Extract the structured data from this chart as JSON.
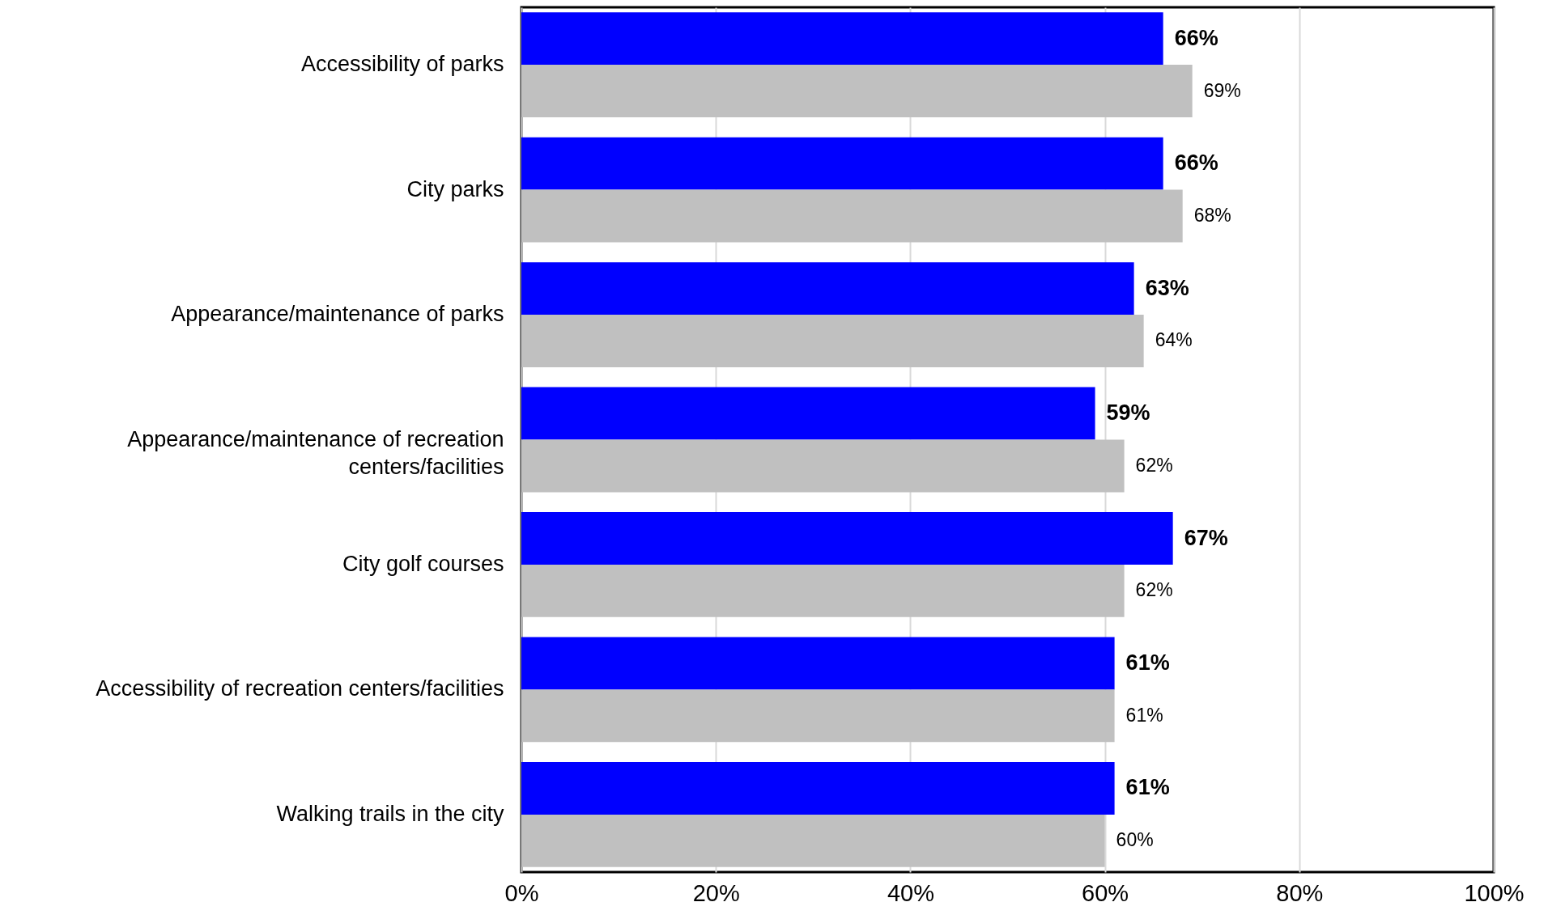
{
  "chart_data": {
    "type": "bar",
    "orientation": "horizontal",
    "categories": [
      "Accessibility of parks",
      "City parks",
      "Appearance/maintenance of parks",
      "Appearance/maintenance of recreation centers/facilities",
      "City golf courses",
      "Accessibility of recreation centers/facilities",
      "Walking trails in the city"
    ],
    "series": [
      {
        "color": "#0000ff",
        "values": [
          66,
          66,
          63,
          59,
          67,
          61,
          61
        ],
        "value_labels": [
          "66%",
          "66%",
          "63%",
          "59%",
          "67%",
          "61%",
          "61%"
        ]
      },
      {
        "color": "#c0c0c0",
        "values": [
          69,
          68,
          64,
          62,
          62,
          61,
          60
        ],
        "value_labels": [
          "69%",
          "68%",
          "64%",
          "62%",
          "62%",
          "61%",
          "60%"
        ]
      }
    ],
    "xlim": [
      0,
      100
    ],
    "xticks": [
      {
        "value": 0,
        "label": "0%"
      },
      {
        "value": 20,
        "label": "20%"
      },
      {
        "value": 40,
        "label": "40%"
      },
      {
        "value": 60,
        "label": "60%"
      },
      {
        "value": 80,
        "label": "80%"
      },
      {
        "value": 100,
        "label": "100%"
      }
    ],
    "grid": "x"
  }
}
